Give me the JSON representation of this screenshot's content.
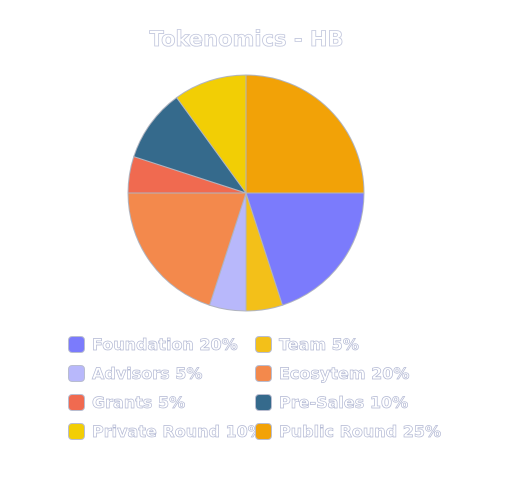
{
  "chart_data": {
    "type": "pie",
    "title": "Tokenomics - HB",
    "legend_position": "bottom",
    "slices": [
      {
        "label": "Foundation 20%",
        "name": "Foundation",
        "value": 20,
        "color": "#7b7bfc"
      },
      {
        "label": "Team 5%",
        "name": "Team",
        "value": 5,
        "color": "#f3c019"
      },
      {
        "label": "Advisors 5%",
        "name": "Advisors",
        "value": 5,
        "color": "#b8b8fb"
      },
      {
        "label": "Ecosytem 20%",
        "name": "Ecosytem",
        "value": 20,
        "color": "#f3894c"
      },
      {
        "label": "Grants 5%",
        "name": "Grants",
        "value": 5,
        "color": "#f06a50"
      },
      {
        "label": "Pre-Sales 10%",
        "name": "Pre-Sales",
        "value": 10,
        "color": "#356a8c"
      },
      {
        "label": "Private Round 10%",
        "name": "Private Round",
        "value": 10,
        "color": "#f2ce05"
      },
      {
        "label": "Public Round 25%",
        "name": "Public Round",
        "value": 25,
        "color": "#f2a207"
      }
    ]
  }
}
